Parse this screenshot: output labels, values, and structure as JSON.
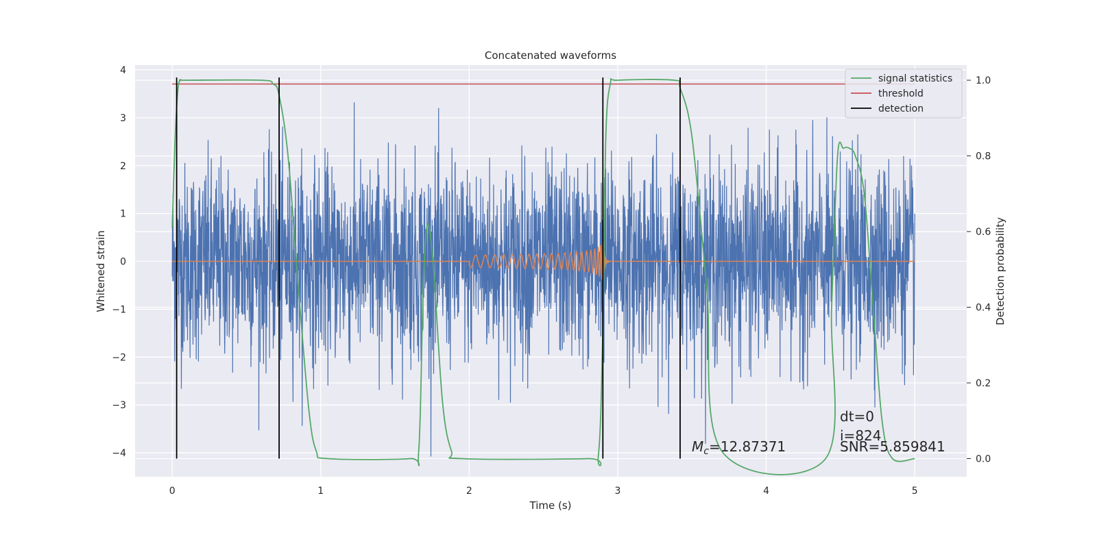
{
  "chart_data": {
    "type": "line",
    "title": "Concatenated waveforms",
    "xlabel": "Time (s)",
    "ylabel": "Whitened strain",
    "y2label": "Detection probability",
    "xlim": [
      -0.25,
      5.35
    ],
    "ylim": [
      -4.5,
      4.1
    ],
    "y2lim": [
      -0.048,
      1.04
    ],
    "xticks": [
      0,
      1,
      2,
      3,
      4,
      5
    ],
    "yticks": [
      -4,
      -3,
      -2,
      -1,
      0,
      1,
      2,
      3,
      4
    ],
    "y2ticks": [
      0.0,
      0.2,
      0.4,
      0.6,
      0.8,
      1.0
    ],
    "xtick_labels": [
      "0",
      "1",
      "2",
      "3",
      "4",
      "5"
    ],
    "ytick_labels": [
      "−4",
      "−3",
      "−2",
      "−1",
      "0",
      "1",
      "2",
      "3",
      "4"
    ],
    "y2tick_labels": [
      "0.0",
      "0.2",
      "0.4",
      "0.6",
      "0.8",
      "1.0"
    ],
    "grid": true,
    "legend_position": "top-right",
    "colors": {
      "strain": "#4c72b0",
      "template": "#dd8452",
      "signal_statistics": "#55a868",
      "threshold": "#c44e52",
      "detection": "#000000",
      "background": "#eaeaf2"
    },
    "strain_noise": {
      "x_start": 0.0,
      "x_end": 5.0,
      "typical_amplitude": 1.3,
      "peak_max": 3.65,
      "peak_min": -4.1
    },
    "template_chirp": {
      "x_start": 2.0,
      "x_merger": 2.9,
      "x_end": 3.0,
      "peak_amplitude": 0.65
    },
    "series": [
      {
        "name": "signal statistics",
        "x": [
          0.0,
          0.02,
          0.04,
          0.06,
          0.1,
          0.6,
          0.68,
          0.72,
          0.78,
          0.85,
          0.92,
          0.97,
          1.05,
          1.6,
          1.66,
          1.69,
          1.72,
          1.76,
          1.82,
          1.88,
          1.95,
          2.8,
          2.87,
          2.9,
          2.92,
          2.95,
          3.0,
          3.38,
          3.42,
          3.5,
          3.6,
          3.7,
          4.4,
          4.44,
          4.48,
          4.52,
          4.56,
          4.6,
          4.66,
          4.72,
          4.78,
          4.85,
          5.0
        ],
        "y": [
          0.61,
          0.85,
          0.98,
          1.0,
          1.0,
          1.0,
          0.99,
          0.96,
          0.8,
          0.45,
          0.13,
          0.02,
          0.0,
          0.0,
          0.02,
          0.45,
          0.62,
          0.5,
          0.15,
          0.02,
          0.0,
          0.0,
          0.01,
          0.35,
          0.85,
          0.99,
          1.0,
          1.0,
          0.98,
          0.85,
          0.45,
          0.02,
          0.0,
          0.4,
          0.8,
          0.82,
          0.82,
          0.8,
          0.7,
          0.4,
          0.1,
          0.0,
          0.0
        ]
      },
      {
        "name": "threshold",
        "x": [
          0.0,
          5.0
        ],
        "y": [
          0.99,
          0.99
        ]
      },
      {
        "name": "detection",
        "x": [
          0.03,
          0.72,
          2.9,
          3.42
        ]
      }
    ],
    "legend": [
      "signal statistics",
      "threshold",
      "detection"
    ],
    "annotations": {
      "mc_symbol": "M",
      "mc_sub": "c",
      "mc_value": "=12.87371",
      "dt": "dt=0",
      "index": "i=824",
      "snr": "SNR=5.859841"
    }
  }
}
